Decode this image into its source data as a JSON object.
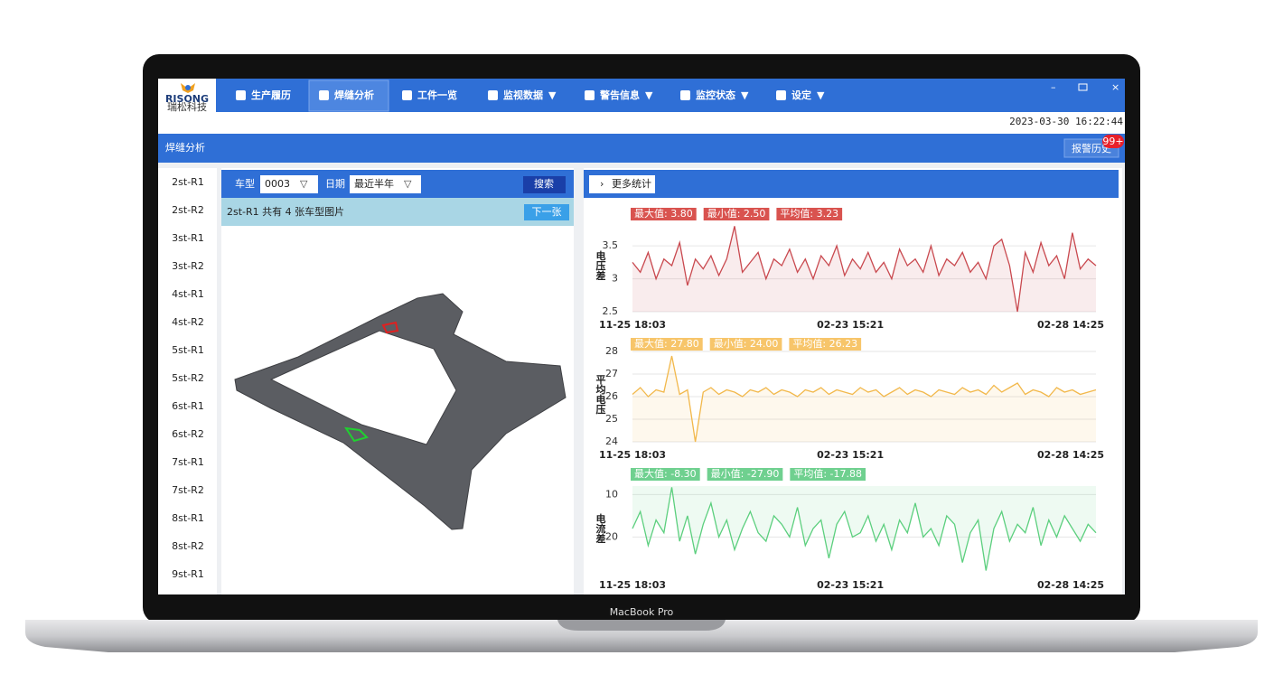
{
  "nav": {
    "logo": "RISONG",
    "logo_sub": "瑞松科技",
    "items": [
      "生产履历",
      "焊缝分析",
      "工件一览",
      "监视数据",
      "警告信息",
      "监控状态",
      "设定"
    ]
  },
  "datetime": "2023-03-30 16:22:44",
  "page_title": "焊缝分析",
  "alarm_button": "报警历史",
  "alarm_badge": "99+",
  "stations": [
    "2st-R1",
    "2st-R2",
    "3st-R1",
    "3st-R2",
    "4st-R1",
    "4st-R2",
    "5st-R1",
    "5st-R2",
    "6st-R1",
    "6st-R2",
    "7st-R1",
    "7st-R2",
    "8st-R1",
    "8st-R2",
    "9st-R1"
  ],
  "filter": {
    "car_type_label": "车型",
    "car_type": "0003",
    "date_label": "日期",
    "date_range": "最近半年",
    "search": "搜索"
  },
  "image_info": "2st-R1 共有 4 张车型图片",
  "next_button": "下一张",
  "more_stats": "更多统计",
  "charts": [
    {
      "type": "line",
      "y_label": "电压差",
      "color": "#c9494f",
      "stats_color": "#d9534f",
      "stats": [
        "最大值: 3.80",
        "最小值: 2.50",
        "平均值: 3.23"
      ],
      "ylim": [
        2.5,
        3.9
      ],
      "yticks": [
        2.5,
        3,
        3.5
      ],
      "inverted": false,
      "x_labels": [
        "11-25 18:03",
        "02-23 15:21",
        "02-28 14:25"
      ],
      "values": [
        3.25,
        3.1,
        3.4,
        3.0,
        3.3,
        3.2,
        3.55,
        2.9,
        3.3,
        3.15,
        3.35,
        3.05,
        3.3,
        3.8,
        3.1,
        3.25,
        3.4,
        3.0,
        3.3,
        3.2,
        3.45,
        3.1,
        3.3,
        3.0,
        3.35,
        3.2,
        3.5,
        3.05,
        3.3,
        3.15,
        3.4,
        3.1,
        3.25,
        3.0,
        3.45,
        3.2,
        3.3,
        3.1,
        3.5,
        3.05,
        3.3,
        3.2,
        3.4,
        3.1,
        3.25,
        3.0,
        3.5,
        3.6,
        3.2,
        2.5,
        3.4,
        3.1,
        3.55,
        3.2,
        3.35,
        3.0,
        3.7,
        3.15,
        3.3,
        3.2
      ]
    },
    {
      "type": "line",
      "y_label": "平均电压",
      "color": "#f2b84b",
      "stats_color": "#f7c56a",
      "stats": [
        "最大值: 27.80",
        "最小值: 24.00",
        "平均值: 26.23"
      ],
      "ylim": [
        24,
        28.2
      ],
      "yticks": [
        24,
        25,
        26,
        27,
        28
      ],
      "inverted": false,
      "x_labels": [
        "11-25 18:03",
        "02-23 15:21",
        "02-28 14:25"
      ],
      "values": [
        26.1,
        26.4,
        26.0,
        26.3,
        26.2,
        27.8,
        26.1,
        26.3,
        24.0,
        26.2,
        26.4,
        26.1,
        26.3,
        26.2,
        26.0,
        26.3,
        26.2,
        26.4,
        26.1,
        26.3,
        26.2,
        26.0,
        26.3,
        26.2,
        26.4,
        26.1,
        26.3,
        26.2,
        26.1,
        26.4,
        26.2,
        26.3,
        26.0,
        26.2,
        26.4,
        26.1,
        26.3,
        26.2,
        26.0,
        26.3,
        26.2,
        26.1,
        26.4,
        26.2,
        26.3,
        26.1,
        26.5,
        26.2,
        26.4,
        26.6,
        26.1,
        26.3,
        26.2,
        26.0,
        26.4,
        26.2,
        26.3,
        26.1,
        26.2,
        26.3
      ]
    },
    {
      "type": "line",
      "y_label": "电流差",
      "color": "#5ccf7e",
      "stats_color": "#6fd08f",
      "stats": [
        "最大值: -8.30",
        "最小值: -27.90",
        "平均值: -17.88"
      ],
      "ylim": [
        8,
        28
      ],
      "yticks": [
        10,
        20
      ],
      "inverted": true,
      "x_labels": [
        "11-25 18:03",
        "02-23 15:21",
        "02-28 14:25"
      ],
      "values": [
        18,
        14,
        22,
        16,
        19,
        8.3,
        21,
        15,
        24,
        17,
        12,
        20,
        16,
        23,
        18,
        14,
        19,
        21,
        15,
        17,
        20,
        13,
        22,
        18,
        16,
        25,
        17,
        14,
        20,
        19,
        15,
        21,
        17,
        23,
        16,
        19,
        12,
        20,
        18,
        22,
        15,
        17,
        26,
        19,
        16,
        27.9,
        18,
        14,
        21,
        17,
        19,
        13,
        22,
        16,
        20,
        15,
        18,
        21,
        17,
        19
      ]
    }
  ],
  "device_label": "MacBook Pro"
}
